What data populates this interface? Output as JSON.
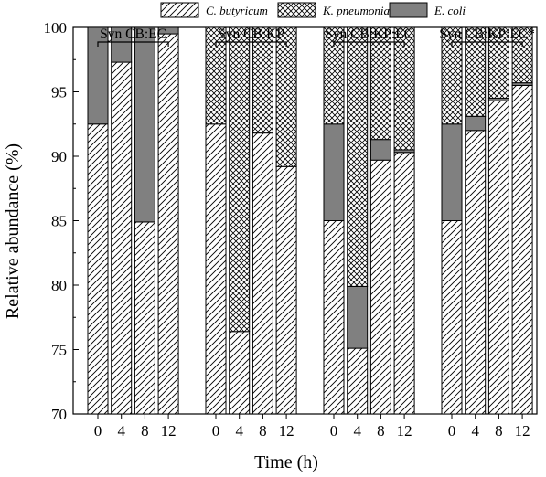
{
  "chart_data": {
    "type": "bar",
    "stacked": true,
    "xlabel": "Time (h)",
    "ylabel": "Relative abundance (%)",
    "ylim": [
      70,
      100
    ],
    "yticks": [
      70,
      75,
      80,
      85,
      90,
      95,
      100
    ],
    "legend": {
      "placement": "top",
      "entries": [
        {
          "name": "C. butyricum",
          "pattern": "hatch-diagonal"
        },
        {
          "name": "K. pneumoniae",
          "pattern": "cross-hatch"
        },
        {
          "name": "E. coli",
          "pattern": "solid-gray"
        }
      ]
    },
    "colors": {
      "c_butyricum": "#ffffff",
      "k_pneumoniae": "#ffffff",
      "e_coli": "#808080",
      "stroke": "#000000"
    },
    "groups": [
      {
        "label": "Syn CB:EC",
        "time": [
          "0",
          "4",
          "8",
          "12"
        ],
        "c_butyricum": [
          92.5,
          97.3,
          84.9,
          99.5
        ],
        "k_pneumoniae": [
          0,
          0,
          0,
          0
        ],
        "e_coli": [
          7.5,
          2.7,
          15.1,
          0.5
        ]
      },
      {
        "label": "Syn CB:KP",
        "time": [
          "0",
          "4",
          "8",
          "12"
        ],
        "c_butyricum": [
          92.5,
          76.4,
          91.8,
          89.2
        ],
        "k_pneumoniae": [
          7.5,
          23.6,
          8.2,
          10.8
        ],
        "e_coli": [
          0,
          0,
          0,
          0
        ]
      },
      {
        "label": "Syn CB:KP:EC",
        "time": [
          "0",
          "4",
          "8",
          "12"
        ],
        "c_butyricum": [
          85.0,
          75.1,
          89.7,
          90.3
        ],
        "k_pneumoniae": [
          7.5,
          20.1,
          8.7,
          9.5
        ],
        "e_coli": [
          7.5,
          4.8,
          1.6,
          0.2
        ]
      },
      {
        "label": "Syn CB:KP:EC*",
        "time": [
          "0",
          "4",
          "8",
          "12"
        ],
        "c_butyricum": [
          85.0,
          92.0,
          94.3,
          95.5
        ],
        "k_pneumoniae": [
          7.5,
          6.9,
          5.5,
          4.3
        ],
        "e_coli": [
          7.5,
          1.1,
          0.2,
          0.2
        ]
      }
    ]
  }
}
